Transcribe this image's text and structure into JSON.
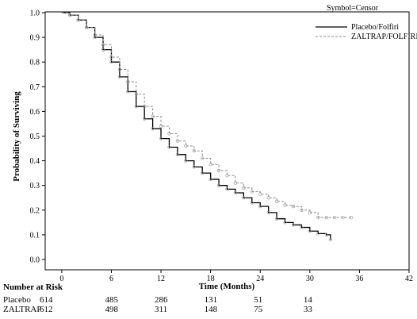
{
  "legend": {
    "title": "Symbol=Censor",
    "entries": [
      "Placebo/Folfiri",
      "ZALTRAP/FOLFIRI"
    ]
  },
  "risk_table": {
    "header": "Number at Risk",
    "rows": [
      {
        "label": "Placebo",
        "values": [
          "614",
          "485",
          "286",
          "131",
          "51",
          "14"
        ]
      },
      {
        "label": "ZALTRAP",
        "values": [
          "612",
          "498",
          "311",
          "148",
          "75",
          "33"
        ]
      }
    ]
  },
  "colors": {
    "placebo": "#000000",
    "zaltrap": "#8a8a8a"
  },
  "chart_data": {
    "type": "line",
    "xlabel": "Time (Months)",
    "ylabel": "Probability of Surviving",
    "xlim": [
      -2,
      42
    ],
    "ylim": [
      0,
      1
    ],
    "xticks": [
      0,
      6,
      12,
      18,
      24,
      30,
      36,
      42
    ],
    "yticks": [
      0.0,
      0.1,
      0.2,
      0.3,
      0.4,
      0.5,
      0.6,
      0.7,
      0.8,
      0.9,
      1.0
    ],
    "grid": false,
    "legend_position": "top-right",
    "series": [
      {
        "name": "Placebo/Folfiri",
        "style": "solid",
        "x": [
          0,
          1,
          2,
          3,
          4,
          5,
          6,
          7,
          8,
          9,
          10,
          11,
          12,
          13,
          14,
          15,
          16,
          17,
          18,
          19,
          20,
          21,
          22,
          23,
          24,
          25,
          26,
          27,
          28,
          29,
          30,
          31,
          32,
          32.5
        ],
        "y": [
          1.0,
          0.99,
          0.97,
          0.94,
          0.9,
          0.85,
          0.8,
          0.74,
          0.68,
          0.62,
          0.57,
          0.53,
          0.49,
          0.455,
          0.425,
          0.4,
          0.375,
          0.35,
          0.325,
          0.3,
          0.285,
          0.27,
          0.25,
          0.23,
          0.215,
          0.19,
          0.165,
          0.15,
          0.14,
          0.13,
          0.115,
          0.105,
          0.1,
          0.08
        ]
      },
      {
        "name": "ZALTRAP/FOLFIRI",
        "style": "dashed",
        "x": [
          0,
          1,
          2,
          3,
          4,
          5,
          6,
          7,
          8,
          9,
          10,
          11,
          12,
          13,
          14,
          15,
          16,
          17,
          18,
          19,
          20,
          21,
          22,
          23,
          24,
          25,
          26,
          27,
          28,
          29,
          30,
          31,
          32,
          33,
          34,
          35
        ],
        "y": [
          1.0,
          0.99,
          0.97,
          0.94,
          0.91,
          0.87,
          0.82,
          0.77,
          0.72,
          0.67,
          0.62,
          0.58,
          0.54,
          0.51,
          0.48,
          0.46,
          0.44,
          0.41,
          0.385,
          0.36,
          0.34,
          0.31,
          0.29,
          0.275,
          0.265,
          0.25,
          0.235,
          0.22,
          0.215,
          0.2,
          0.19,
          0.17,
          0.17,
          0.17,
          0.17,
          0.17
        ]
      }
    ]
  }
}
